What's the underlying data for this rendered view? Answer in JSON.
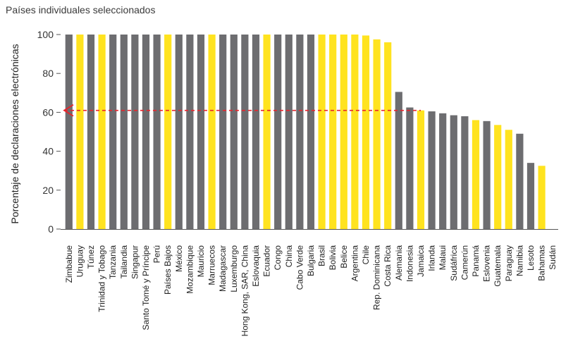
{
  "chart_data": {
    "type": "bar",
    "title": "Países individuales seleccionados",
    "ylabel": "Porcentaje de declaraciones electrónicas",
    "xlabel": "",
    "ylim": [
      0,
      100
    ],
    "yticks": [
      0,
      20,
      40,
      60,
      80,
      100
    ],
    "grid": false,
    "legend": "none",
    "colors": {
      "gray": "#6d6d70",
      "yellow": "#ffe31f",
      "reference": "#e8242b"
    },
    "reference_line": {
      "value": 61,
      "style": "dashed",
      "arrow": "left"
    },
    "categories": [
      "Zimbabue",
      "Uruguay",
      "Túnez",
      "Trinidad y Tobago",
      "Tanzania",
      "Tailandia",
      "Singapur",
      "Santo Tomé y Príncipe",
      "Perú",
      "Países Bajos",
      "México",
      "Mozambique",
      "Mauricio",
      "Marruecos",
      "Madagascar",
      "Luxemburgo",
      "Hong Kong, SAR, China",
      "Eslovaquia",
      "Ecuador",
      "Congo",
      "China",
      "Cabo Verde",
      "Bulgaria",
      "Brasil",
      "Bolivia",
      "Belice",
      "Argentina",
      "Chile",
      "Rep. Dominicana",
      "Costa Rica",
      "Alemania",
      "Indonesia",
      "Jamaica",
      "Irlanda",
      "Malaui",
      "Sudáfrica",
      "Camerún",
      "Panamá",
      "Eslovenia",
      "Guatemala",
      "Paraguay",
      "Namibia",
      "Lesoto",
      "Bahamas",
      "Sudán"
    ],
    "values": [
      100,
      100,
      100,
      100,
      100,
      100,
      100,
      100,
      100,
      100,
      100,
      100,
      100,
      100,
      100,
      100,
      100,
      100,
      100,
      100,
      100,
      100,
      100,
      100,
      100,
      100,
      100,
      99.5,
      97.5,
      96,
      70.5,
      62.5,
      61,
      60.5,
      59.5,
      58.5,
      58,
      56,
      55.5,
      53.5,
      51,
      49,
      34,
      32.5,
      0
    ],
    "bar_colors": [
      "gray",
      "yellow",
      "gray",
      "yellow",
      "gray",
      "gray",
      "gray",
      "gray",
      "gray",
      "yellow",
      "gray",
      "gray",
      "gray",
      "yellow",
      "gray",
      "gray",
      "gray",
      "gray",
      "yellow",
      "gray",
      "gray",
      "gray",
      "gray",
      "yellow",
      "yellow",
      "yellow",
      "yellow",
      "yellow",
      "yellow",
      "yellow",
      "gray",
      "gray",
      "yellow",
      "gray",
      "gray",
      "gray",
      "gray",
      "yellow",
      "gray",
      "yellow",
      "yellow",
      "gray",
      "gray",
      "yellow",
      "gray"
    ]
  }
}
